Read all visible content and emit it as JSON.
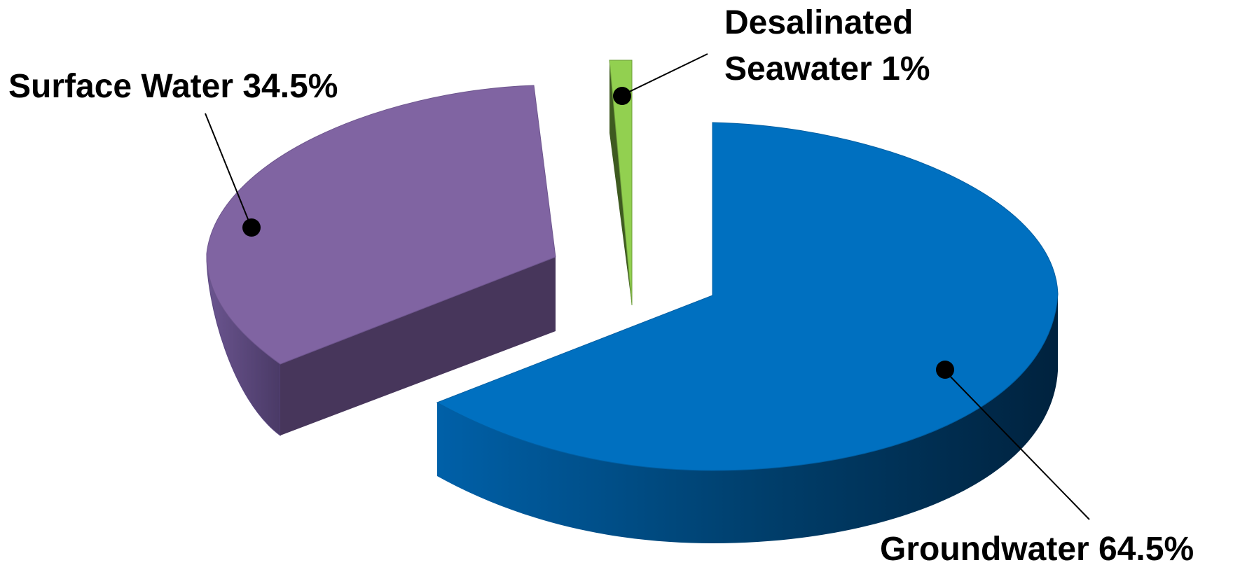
{
  "chart_data": {
    "type": "pie",
    "style": "3d-exploded",
    "categories": [
      "Groundwater",
      "Surface Water",
      "Desalinated Seawater"
    ],
    "values": [
      64.5,
      34.5,
      1
    ],
    "unit": "%",
    "colors": [
      "#0070C0",
      "#8064A2",
      "#92D050"
    ],
    "legend": "none",
    "data_labels": [
      {
        "lines": [
          "Groundwater 64.5%"
        ]
      },
      {
        "lines": [
          "Surface Water 34.5%"
        ]
      },
      {
        "lines": [
          "Desalinated",
          "Seawater 1%"
        ]
      }
    ]
  }
}
